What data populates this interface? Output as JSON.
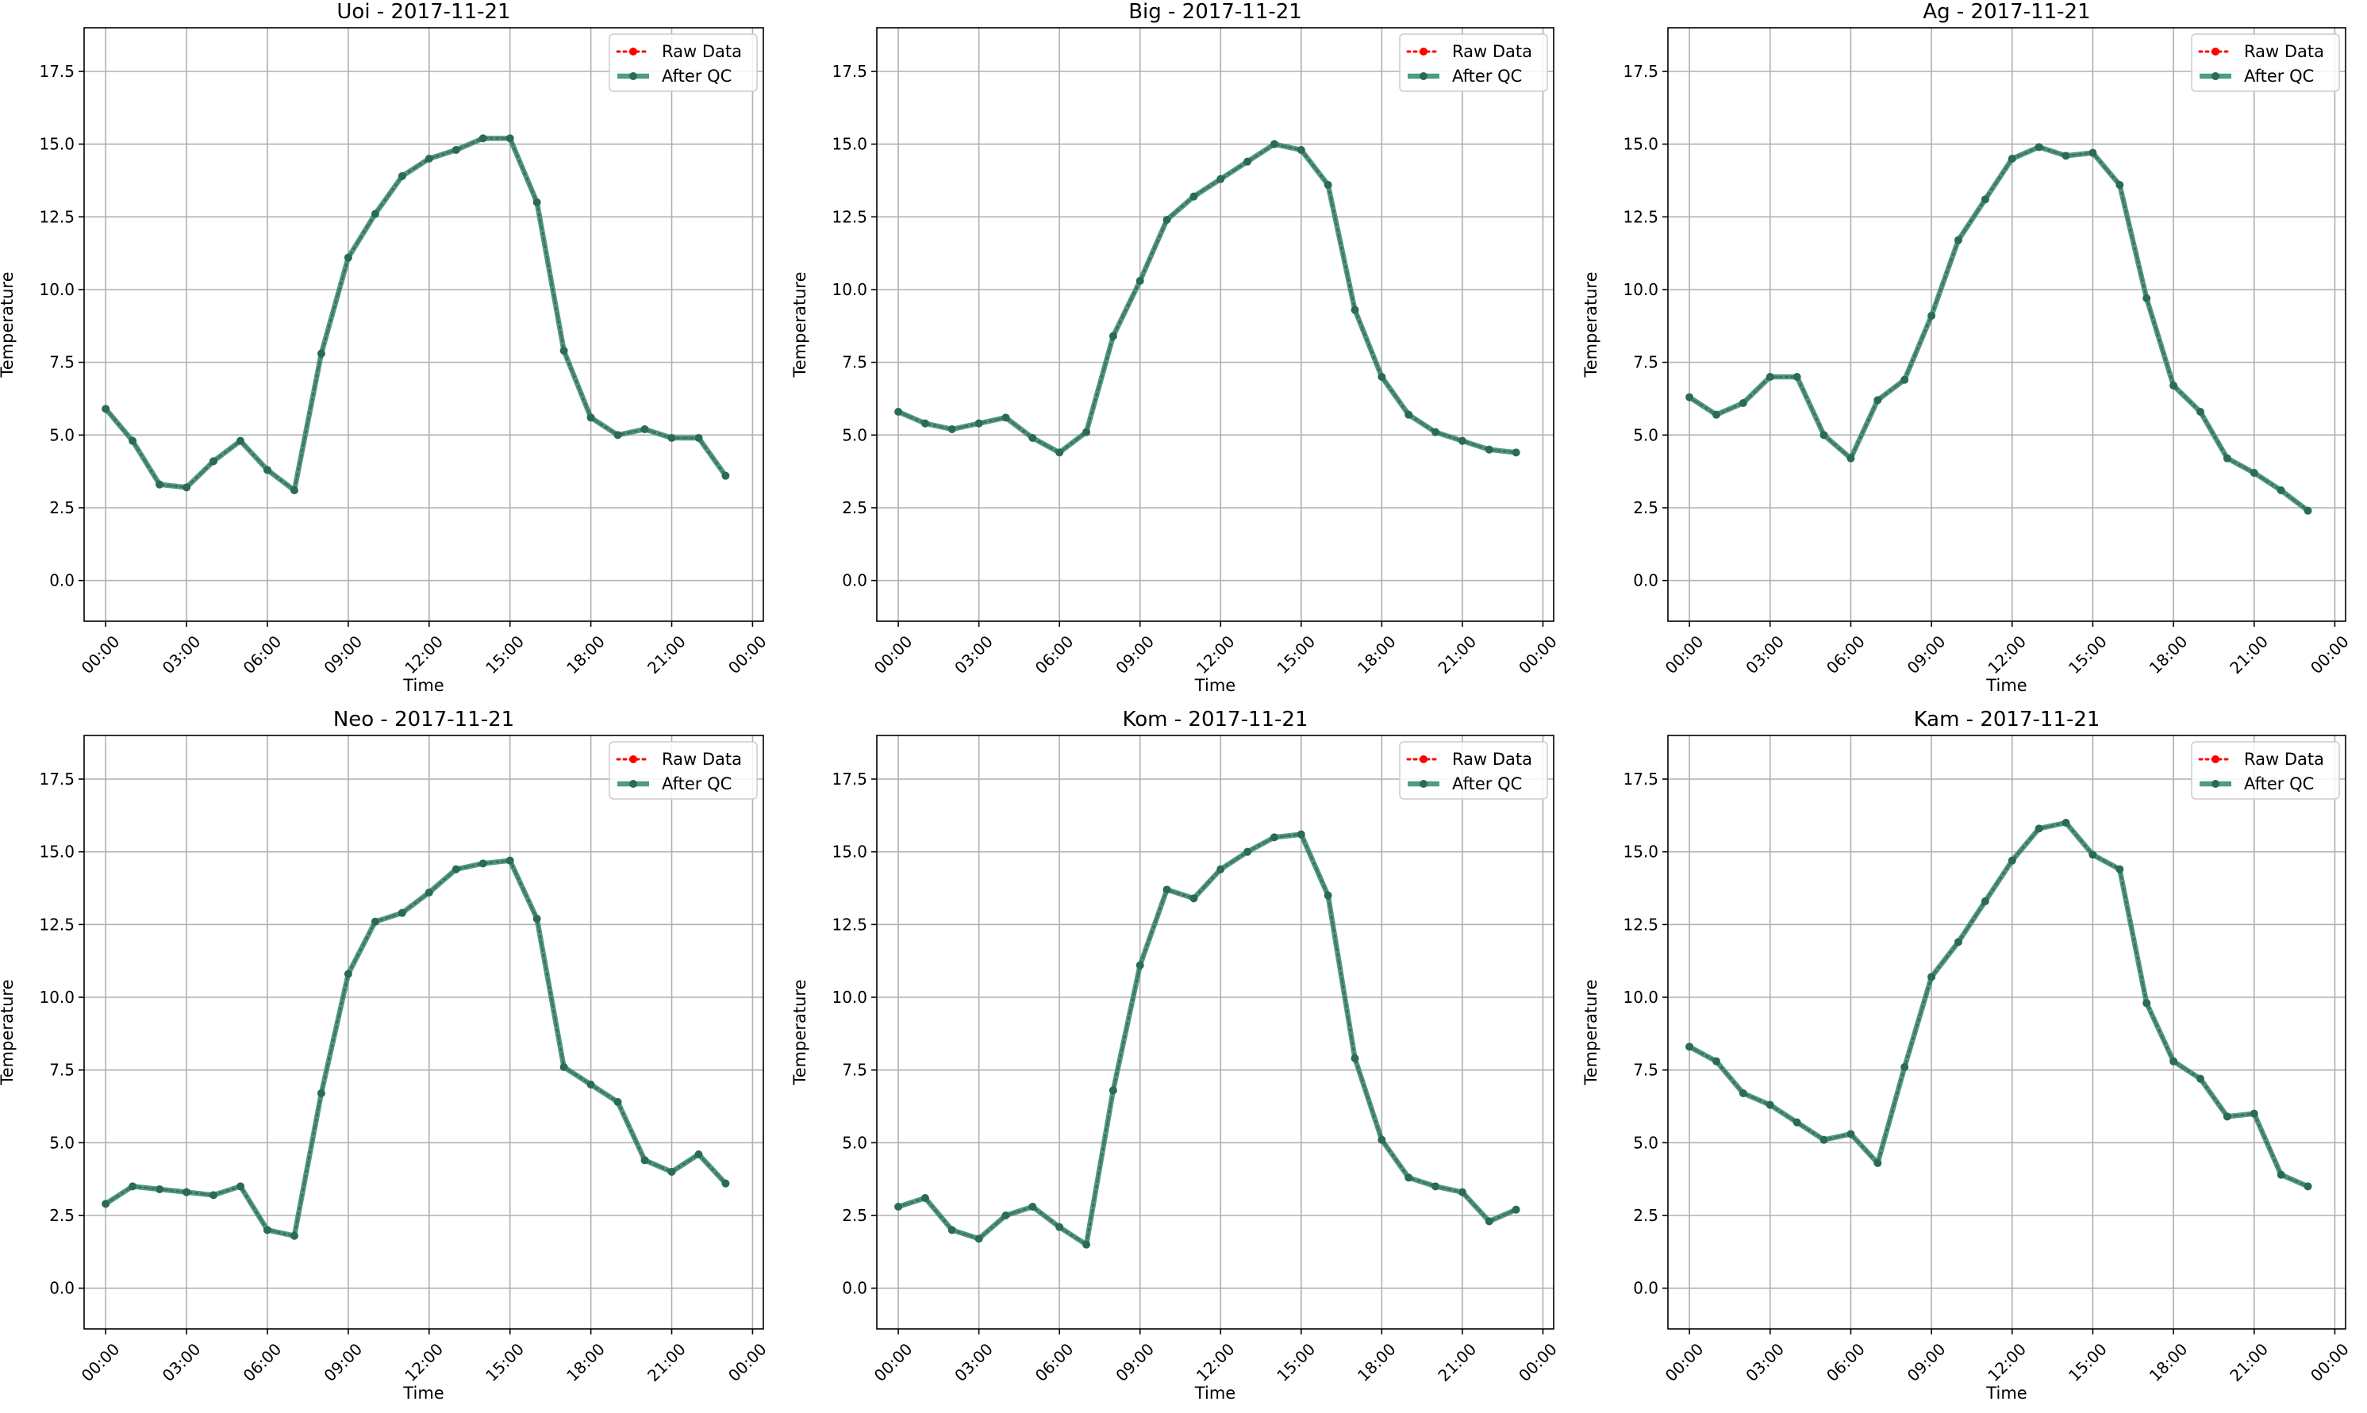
{
  "chart_data": [
    {
      "type": "line",
      "title": "Uoi - 2017-11-21",
      "xlabel": "Time",
      "ylabel": "Temperature",
      "ylim": [
        -1.4,
        19.0
      ],
      "yticks": [
        "0.0",
        "2.5",
        "5.0",
        "7.5",
        "10.0",
        "12.5",
        "15.0",
        "17.5"
      ],
      "xticks": [
        "00:00",
        "03:00",
        "06:00",
        "09:00",
        "12:00",
        "15:00",
        "18:00",
        "21:00",
        "00:00"
      ],
      "grid": true,
      "legend_position": "top-right",
      "x": [
        0,
        1,
        2,
        3,
        4,
        5,
        6,
        7,
        8,
        9,
        10,
        11,
        12,
        13,
        14,
        15,
        16,
        17,
        18,
        19,
        20,
        21,
        22,
        23
      ],
      "series": [
        {
          "name": "Raw Data",
          "values": [
            5.9,
            4.8,
            3.3,
            3.2,
            4.1,
            4.8,
            3.8,
            3.1,
            7.8,
            11.1,
            12.6,
            13.9,
            14.5,
            14.8,
            15.2,
            15.2,
            13.0,
            7.9,
            5.6,
            5.0,
            5.2,
            4.9,
            4.9,
            3.6
          ]
        },
        {
          "name": "After QC",
          "values": [
            5.9,
            4.8,
            3.3,
            3.2,
            4.1,
            4.8,
            3.8,
            3.1,
            7.8,
            11.1,
            12.6,
            13.9,
            14.5,
            14.8,
            15.2,
            15.2,
            13.0,
            7.9,
            5.6,
            5.0,
            5.2,
            4.9,
            4.9,
            3.6
          ]
        }
      ]
    },
    {
      "type": "line",
      "title": "Big - 2017-11-21",
      "xlabel": "Time",
      "ylabel": "Temperature",
      "ylim": [
        -1.4,
        19.0
      ],
      "yticks": [
        "0.0",
        "2.5",
        "5.0",
        "7.5",
        "10.0",
        "12.5",
        "15.0",
        "17.5"
      ],
      "xticks": [
        "00:00",
        "03:00",
        "06:00",
        "09:00",
        "12:00",
        "15:00",
        "18:00",
        "21:00",
        "00:00"
      ],
      "grid": true,
      "legend_position": "top-right",
      "x": [
        0,
        1,
        2,
        3,
        4,
        5,
        6,
        7,
        8,
        9,
        10,
        11,
        12,
        13,
        14,
        15,
        16,
        17,
        18,
        19,
        20,
        21,
        22,
        23
      ],
      "series": [
        {
          "name": "Raw Data",
          "values": [
            5.8,
            5.4,
            5.2,
            5.4,
            5.6,
            4.9,
            4.4,
            5.1,
            8.4,
            10.3,
            12.4,
            13.2,
            13.8,
            14.4,
            15.0,
            14.8,
            13.6,
            9.3,
            7.0,
            5.7,
            5.1,
            4.8,
            4.5,
            4.4
          ]
        },
        {
          "name": "After QC",
          "values": [
            5.8,
            5.4,
            5.2,
            5.4,
            5.6,
            4.9,
            4.4,
            5.1,
            8.4,
            10.3,
            12.4,
            13.2,
            13.8,
            14.4,
            15.0,
            14.8,
            13.6,
            9.3,
            7.0,
            5.7,
            5.1,
            4.8,
            4.5,
            4.4
          ]
        }
      ]
    },
    {
      "type": "line",
      "title": "Ag - 2017-11-21",
      "xlabel": "Time",
      "ylabel": "Temperature",
      "ylim": [
        -1.4,
        19.0
      ],
      "yticks": [
        "0.0",
        "2.5",
        "5.0",
        "7.5",
        "10.0",
        "12.5",
        "15.0",
        "17.5"
      ],
      "xticks": [
        "00:00",
        "03:00",
        "06:00",
        "09:00",
        "12:00",
        "15:00",
        "18:00",
        "21:00",
        "00:00"
      ],
      "grid": true,
      "legend_position": "top-right",
      "x": [
        0,
        1,
        2,
        3,
        4,
        5,
        6,
        7,
        8,
        9,
        10,
        11,
        12,
        13,
        14,
        15,
        16,
        17,
        18,
        19,
        20,
        21,
        22,
        23
      ],
      "series": [
        {
          "name": "Raw Data",
          "values": [
            6.3,
            5.7,
            6.1,
            7.0,
            7.0,
            5.0,
            4.2,
            6.2,
            6.9,
            9.1,
            11.7,
            13.1,
            14.5,
            14.9,
            14.6,
            14.7,
            13.6,
            9.7,
            6.7,
            5.8,
            4.2,
            3.7,
            3.1,
            2.4
          ]
        },
        {
          "name": "After QC",
          "values": [
            6.3,
            5.7,
            6.1,
            7.0,
            7.0,
            5.0,
            4.2,
            6.2,
            6.9,
            9.1,
            11.7,
            13.1,
            14.5,
            14.9,
            14.6,
            14.7,
            13.6,
            9.7,
            6.7,
            5.8,
            4.2,
            3.7,
            3.1,
            2.4
          ]
        }
      ]
    },
    {
      "type": "line",
      "title": "Neo - 2017-11-21",
      "xlabel": "Time",
      "ylabel": "Temperature",
      "ylim": [
        -1.4,
        19.0
      ],
      "yticks": [
        "0.0",
        "2.5",
        "5.0",
        "7.5",
        "10.0",
        "12.5",
        "15.0",
        "17.5"
      ],
      "xticks": [
        "00:00",
        "03:00",
        "06:00",
        "09:00",
        "12:00",
        "15:00",
        "18:00",
        "21:00",
        "00:00"
      ],
      "grid": true,
      "legend_position": "top-right",
      "x": [
        0,
        1,
        2,
        3,
        4,
        5,
        6,
        7,
        8,
        9,
        10,
        11,
        12,
        13,
        14,
        15,
        16,
        17,
        18,
        19,
        20,
        21,
        22,
        23
      ],
      "series": [
        {
          "name": "Raw Data",
          "values": [
            2.9,
            3.5,
            3.4,
            3.3,
            3.2,
            3.5,
            2.0,
            1.8,
            6.7,
            10.8,
            12.6,
            12.9,
            13.6,
            14.4,
            14.6,
            14.7,
            12.7,
            7.6,
            7.0,
            6.4,
            4.4,
            4.0,
            4.6,
            3.6
          ]
        },
        {
          "name": "After QC",
          "values": [
            2.9,
            3.5,
            3.4,
            3.3,
            3.2,
            3.5,
            2.0,
            1.8,
            6.7,
            10.8,
            12.6,
            12.9,
            13.6,
            14.4,
            14.6,
            14.7,
            12.7,
            7.6,
            7.0,
            6.4,
            4.4,
            4.0,
            4.6,
            3.6
          ]
        }
      ]
    },
    {
      "type": "line",
      "title": "Kom - 2017-11-21",
      "xlabel": "Time",
      "ylabel": "Temperature",
      "ylim": [
        -1.4,
        19.0
      ],
      "yticks": [
        "0.0",
        "2.5",
        "5.0",
        "7.5",
        "10.0",
        "12.5",
        "15.0",
        "17.5"
      ],
      "xticks": [
        "00:00",
        "03:00",
        "06:00",
        "09:00",
        "12:00",
        "15:00",
        "18:00",
        "21:00",
        "00:00"
      ],
      "grid": true,
      "legend_position": "top-right",
      "x": [
        0,
        1,
        2,
        3,
        4,
        5,
        6,
        7,
        8,
        9,
        10,
        11,
        12,
        13,
        14,
        15,
        16,
        17,
        18,
        19,
        20,
        21,
        22,
        23
      ],
      "series": [
        {
          "name": "Raw Data",
          "values": [
            2.8,
            3.1,
            2.0,
            1.7,
            2.5,
            2.8,
            2.1,
            1.5,
            6.8,
            11.1,
            13.7,
            13.4,
            14.4,
            15.0,
            15.5,
            15.6,
            13.5,
            7.9,
            5.1,
            3.8,
            3.5,
            3.3,
            2.3,
            2.7
          ]
        },
        {
          "name": "After QC",
          "values": [
            2.8,
            3.1,
            2.0,
            1.7,
            2.5,
            2.8,
            2.1,
            1.5,
            6.8,
            11.1,
            13.7,
            13.4,
            14.4,
            15.0,
            15.5,
            15.6,
            13.5,
            7.9,
            5.1,
            3.8,
            3.5,
            3.3,
            2.3,
            2.7
          ]
        }
      ]
    },
    {
      "type": "line",
      "title": "Kam - 2017-11-21",
      "xlabel": "Time",
      "ylabel": "Temperature",
      "ylim": [
        -1.4,
        19.0
      ],
      "yticks": [
        "0.0",
        "2.5",
        "5.0",
        "7.5",
        "10.0",
        "12.5",
        "15.0",
        "17.5"
      ],
      "xticks": [
        "00:00",
        "03:00",
        "06:00",
        "09:00",
        "12:00",
        "15:00",
        "18:00",
        "21:00",
        "00:00"
      ],
      "grid": true,
      "legend_position": "top-right",
      "x": [
        0,
        1,
        2,
        3,
        4,
        5,
        6,
        7,
        8,
        9,
        10,
        11,
        12,
        13,
        14,
        15,
        16,
        17,
        18,
        19,
        20,
        21,
        22,
        23
      ],
      "series": [
        {
          "name": "Raw Data",
          "values": [
            8.3,
            7.8,
            6.7,
            6.3,
            5.7,
            5.1,
            5.3,
            4.3,
            7.6,
            10.7,
            11.9,
            13.3,
            14.7,
            15.8,
            16.0,
            14.9,
            14.4,
            9.8,
            7.8,
            7.2,
            5.9,
            6.0,
            3.9,
            3.5
          ]
        },
        {
          "name": "After QC",
          "values": [
            8.3,
            7.8,
            6.7,
            6.3,
            5.7,
            5.1,
            5.3,
            4.3,
            7.6,
            10.7,
            11.9,
            13.3,
            14.7,
            15.8,
            16.0,
            14.9,
            14.4,
            9.8,
            7.8,
            7.2,
            5.9,
            6.0,
            3.9,
            3.5
          ]
        }
      ]
    }
  ],
  "colors": {
    "raw": "#ff0000",
    "after_qc": "#2e8b6f",
    "grid": "#b0b0b0",
    "axis": "#000000"
  }
}
